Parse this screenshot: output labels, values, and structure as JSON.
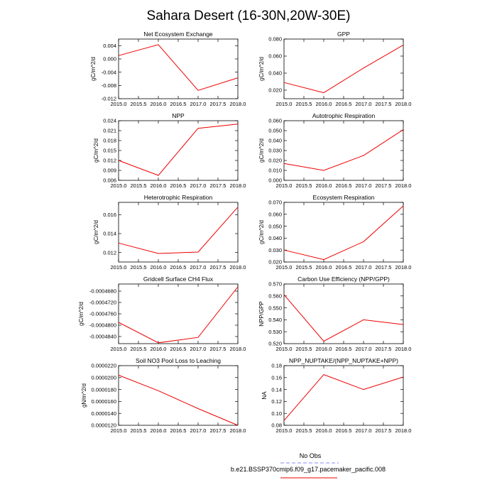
{
  "title": "Sahara Desert (16-30N,20W-30E)",
  "colors": {
    "model_line": "#ee0000",
    "obs_line": "#8888ff",
    "axes": "#000000"
  },
  "legend": {
    "obs_label": "No Obs",
    "model_label": "b.e21.BSSP370cmip6.f09_g17.pacemaker_pacific.008",
    "placement": "bottom-center"
  },
  "chart_data": [
    {
      "type": "line",
      "title": "Net Ecosystem Exchange",
      "ylabel": "gC/m^2/d",
      "xlim": [
        2015,
        2018
      ],
      "xticks": [
        "2015.0",
        "2015.5",
        "2016.0",
        "2016.5",
        "2017.0",
        "2017.5",
        "2018.0"
      ],
      "ylim": [
        -0.012,
        0.006
      ],
      "yticks": [
        "0.004",
        "0.000",
        "-0.004",
        "-0.008",
        "-0.012"
      ],
      "x": [
        2015,
        2016,
        2017,
        2018
      ],
      "values": [
        0.001,
        0.0043,
        -0.0095,
        -0.0057
      ]
    },
    {
      "type": "line",
      "title": "GPP",
      "ylabel": "gC/m^2/d",
      "xlim": [
        2015,
        2018
      ],
      "xticks": [
        "2015.0",
        "2015.5",
        "2016.0",
        "2016.5",
        "2017.0",
        "2017.5",
        "2018.0"
      ],
      "ylim": [
        0.01,
        0.08
      ],
      "yticks": [
        "0.080",
        "0.060",
        "0.040",
        "0.020"
      ],
      "x": [
        2015,
        2016,
        2017,
        2018
      ],
      "values": [
        0.029,
        0.017,
        0.046,
        0.073
      ]
    },
    {
      "type": "line",
      "title": "NPP",
      "ylabel": "gC/m^2/d",
      "xlim": [
        2015,
        2018
      ],
      "xticks": [
        "2015.0",
        "2015.5",
        "2016.0",
        "2016.5",
        "2017.0",
        "2017.5",
        "2018.0"
      ],
      "ylim": [
        0.006,
        0.024
      ],
      "yticks": [
        "0.024",
        "0.021",
        "0.018",
        "0.015",
        "0.012",
        "0.009",
        "0.006"
      ],
      "x": [
        2015,
        2016,
        2017,
        2018
      ],
      "values": [
        0.012,
        0.0075,
        0.0217,
        0.023
      ]
    },
    {
      "type": "line",
      "title": "Autotrophic Respiration",
      "ylabel": "gC/m^2/d",
      "xlim": [
        2015,
        2018
      ],
      "xticks": [
        "2015.0",
        "2015.5",
        "2016.0",
        "2016.5",
        "2017.0",
        "2017.5",
        "2018.0"
      ],
      "ylim": [
        0.0,
        0.06
      ],
      "yticks": [
        "0.060",
        "0.050",
        "0.040",
        "0.030",
        "0.020",
        "0.010",
        "0.000"
      ],
      "x": [
        2015,
        2016,
        2017,
        2018
      ],
      "values": [
        0.017,
        0.01,
        0.025,
        0.051
      ]
    },
    {
      "type": "line",
      "title": "Heterotrophic Respiration",
      "ylabel": "gC/m^2/d",
      "xlim": [
        2015,
        2018
      ],
      "xticks": [
        "2015.0",
        "2015.5",
        "2016.0",
        "2016.5",
        "2017.0",
        "2017.5",
        "2018.0"
      ],
      "ylim": [
        0.011,
        0.0173
      ],
      "yticks": [
        "0.016",
        "0.014",
        "0.012"
      ],
      "x": [
        2015,
        2016,
        2017,
        2018
      ],
      "values": [
        0.013,
        0.0119,
        0.01205,
        0.0168
      ]
    },
    {
      "type": "line",
      "title": "Ecosystem Respiration",
      "ylabel": "gC/m^2/d",
      "xlim": [
        2015,
        2018
      ],
      "xticks": [
        "2015.0",
        "2015.5",
        "2016.0",
        "2016.5",
        "2017.0",
        "2017.5",
        "2018.0"
      ],
      "ylim": [
        0.02,
        0.07
      ],
      "yticks": [
        "0.070",
        "0.060",
        "0.050",
        "0.040",
        "0.030",
        "0.020"
      ],
      "x": [
        2015,
        2016,
        2017,
        2018
      ],
      "values": [
        0.03,
        0.022,
        0.037,
        0.067
      ]
    },
    {
      "type": "line",
      "title": "Gridcell Surface CH4 Flux",
      "ylabel": "gC/m^2/d",
      "xlim": [
        2015,
        2018
      ],
      "xticks": [
        "2015.0",
        "2015.5",
        "2016.0",
        "2016.5",
        "2017.0",
        "2017.5",
        "2018.0"
      ],
      "ylim": [
        -0.0004865,
        -0.0004655
      ],
      "yticks": [
        "-0.0004680",
        "-0.0004720",
        "-0.0004760",
        "-0.0004800",
        "-0.0004840"
      ],
      "x": [
        2015,
        2016,
        2017,
        2018
      ],
      "values": [
        -0.000479,
        -0.0004862,
        -0.0004843,
        -0.0004665
      ]
    },
    {
      "type": "line",
      "title": "Carbon Use Efficiency (NPP/GPP)",
      "ylabel": "NPP/GPP",
      "xlim": [
        2015,
        2018
      ],
      "xticks": [
        "2015.0",
        "2015.5",
        "2016.0",
        "2016.5",
        "2017.0",
        "2017.5",
        "2018.0"
      ],
      "ylim": [
        0.52,
        0.57
      ],
      "yticks": [
        "0.570",
        "0.560",
        "0.550",
        "0.540",
        "0.530",
        "0.520"
      ],
      "x": [
        2015,
        2016,
        2017,
        2018
      ],
      "values": [
        0.561,
        0.522,
        0.54,
        0.536
      ]
    },
    {
      "type": "line",
      "title": "Soil NO3 Pool Loss to Leaching",
      "ylabel": "gN/m^2/d",
      "xlim": [
        2015,
        2018
      ],
      "xticks": [
        "2015.0",
        "2015.5",
        "2016.0",
        "2016.5",
        "2017.0",
        "2017.5",
        "2018.0"
      ],
      "ylim": [
        1.2e-05,
        2.2e-05
      ],
      "yticks": [
        "0.0000220",
        "0.0000200",
        "0.0000180",
        "0.0000160",
        "0.0000140",
        "0.0000120"
      ],
      "x": [
        2015,
        2016,
        2017,
        2018
      ],
      "values": [
        2.04e-05,
        1.78e-05,
        1.48e-05,
        1.2e-05
      ]
    },
    {
      "type": "line",
      "title": "NPP_NUPTAKE/(NPP_NUPTAKE+NPP)",
      "ylabel": "NA",
      "xlim": [
        2015,
        2018
      ],
      "xticks": [
        "2015.0",
        "2015.5",
        "2016.0",
        "2016.5",
        "2017.0",
        "2017.5",
        "2018.0"
      ],
      "ylim": [
        0.08,
        0.18
      ],
      "yticks": [
        "0.18",
        "0.16",
        "0.14",
        "0.12",
        "0.10",
        "0.08"
      ],
      "x": [
        2015,
        2016,
        2017,
        2018
      ],
      "values": [
        0.088,
        0.165,
        0.14,
        0.161
      ]
    }
  ]
}
